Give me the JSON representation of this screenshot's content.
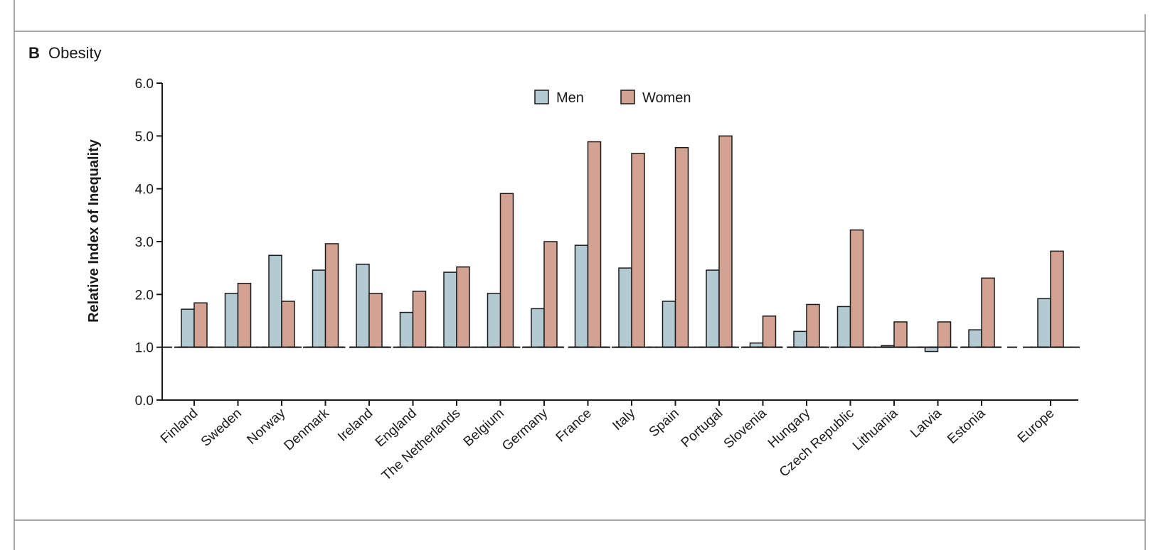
{
  "panel": {
    "letter": "B",
    "title": "Obesity"
  },
  "colors": {
    "men": "#b3cad3",
    "women": "#d4a293",
    "stroke": "#1a1a1a",
    "frame": "#888888"
  },
  "chart_data": {
    "type": "bar",
    "title": "Obesity",
    "xlabel": "",
    "ylabel": "Relative Index of Inequality",
    "ylim": [
      0.0,
      6.0
    ],
    "yticks": [
      "0.0",
      "1.0",
      "2.0",
      "3.0",
      "4.0",
      "5.0",
      "6.0"
    ],
    "reference_line": 1.0,
    "legend": {
      "placement": "top-center",
      "entries": [
        "Men",
        "Women"
      ]
    },
    "grid": false,
    "categories": [
      "Finland",
      "Sweden",
      "Norway",
      "Denmark",
      "Ireland",
      "England",
      "The Netherlands",
      "Belgium",
      "Germany",
      "France",
      "Italy",
      "Spain",
      "Portugal",
      "Slovenia",
      "Hungary",
      "Czech Republic",
      "Lithuania",
      "Latvia",
      "Estonia",
      "Europe"
    ],
    "series": [
      {
        "name": "Men",
        "values": [
          1.72,
          2.02,
          2.74,
          2.46,
          2.57,
          1.66,
          2.42,
          2.02,
          1.73,
          2.93,
          2.5,
          1.87,
          2.46,
          1.08,
          1.3,
          1.77,
          1.03,
          0.92,
          1.33,
          1.92
        ]
      },
      {
        "name": "Women",
        "values": [
          1.84,
          2.21,
          1.87,
          2.96,
          2.02,
          2.06,
          2.52,
          3.91,
          3.0,
          4.89,
          4.67,
          4.78,
          5.0,
          1.59,
          1.81,
          3.22,
          1.48,
          1.48,
          2.31,
          2.82
        ]
      }
    ]
  }
}
